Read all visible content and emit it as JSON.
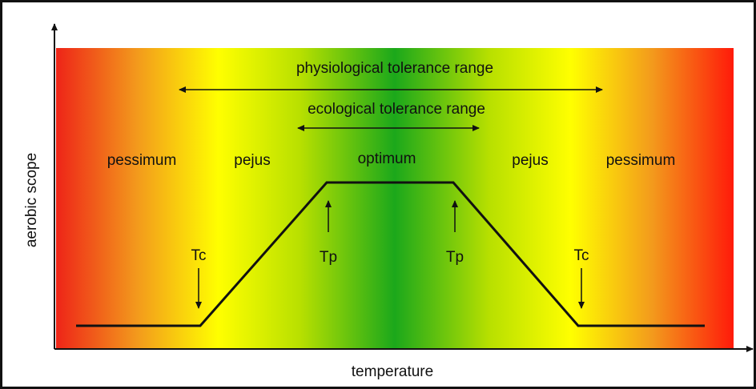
{
  "ranges": [
    {
      "label": "physiological tolerance range"
    },
    {
      "label": "ecological tolerance range"
    }
  ],
  "zones": [
    "pessimum",
    "pejus",
    "optimum",
    "pejus",
    "pessimum"
  ],
  "markers": [
    "Tc",
    "Tp",
    "Tp",
    "Tc"
  ],
  "axes": {
    "x_label": "temperature",
    "y_label": "aerobic scope"
  }
}
